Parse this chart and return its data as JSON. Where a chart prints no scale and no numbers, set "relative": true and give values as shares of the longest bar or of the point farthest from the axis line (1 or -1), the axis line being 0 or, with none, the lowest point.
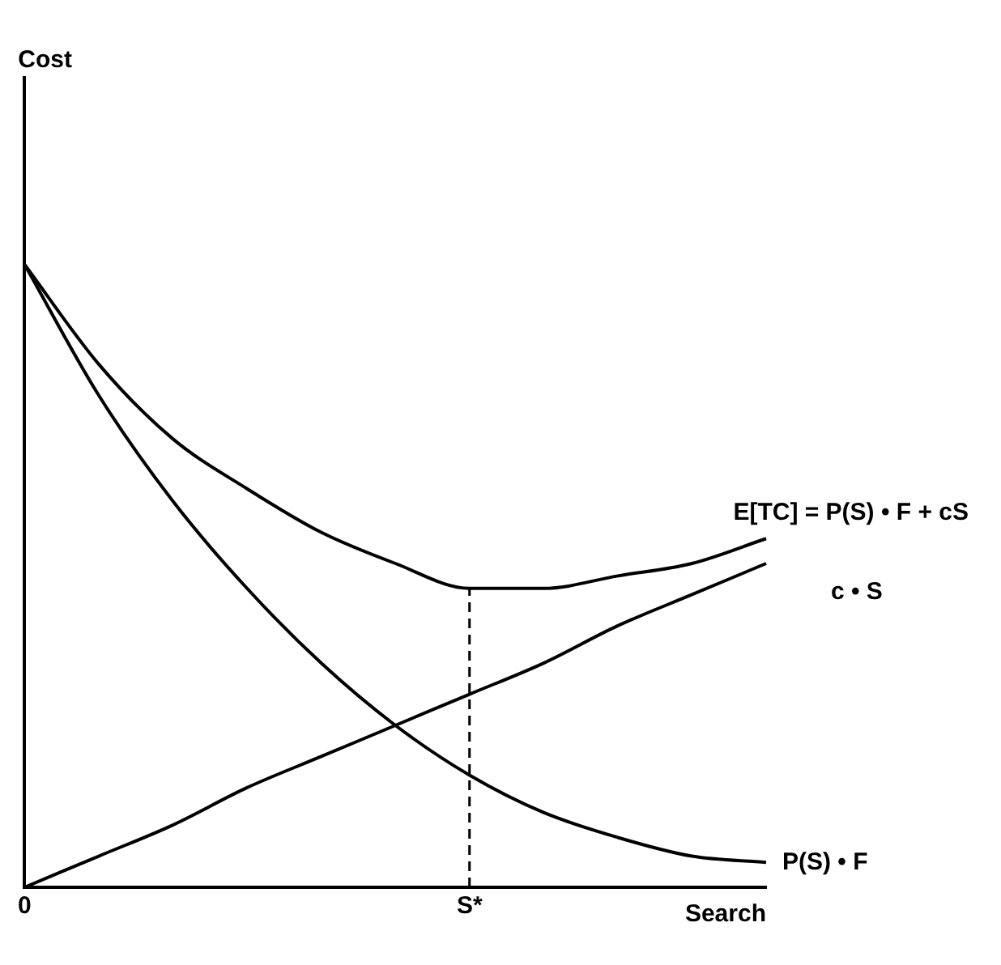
{
  "chart_data": {
    "type": "line",
    "relative": true,
    "annotations": [
      "Cost"
    ],
    "xlabel": "Search",
    "categories": [
      "0",
      null,
      null,
      null,
      null,
      null,
      "S*",
      null,
      null,
      null,
      null
    ],
    "series": [
      {
        "name": "E[TC] = P(S) • F + cS",
        "color": "#000000",
        "values": [
          1,
          0.84,
          0.72,
          0.64,
          0.57,
          0.52,
          0.48,
          0.48,
          0.5,
          0.52,
          0.56
        ]
      },
      {
        "name": "c • S",
        "color": "#000000",
        "values": [
          0,
          0.05,
          0.1,
          0.16,
          0.21,
          0.26,
          0.31,
          0.36,
          0.42,
          0.47,
          0.52
        ]
      },
      {
        "name": "P(S) • F",
        "color": "#000000",
        "values": [
          1,
          0.79,
          0.62,
          0.48,
          0.36,
          0.26,
          0.18,
          0.12,
          0.08,
          0.05,
          0.04
        ]
      }
    ],
    "ref_lines": [
      {
        "axis": "x",
        "value": "S*",
        "line_style": "dashed",
        "color": "#000000"
      }
    ],
    "grid": false,
    "legend": false,
    "marker": "none",
    "line_style": "solid",
    "tick_labels": "x"
  }
}
